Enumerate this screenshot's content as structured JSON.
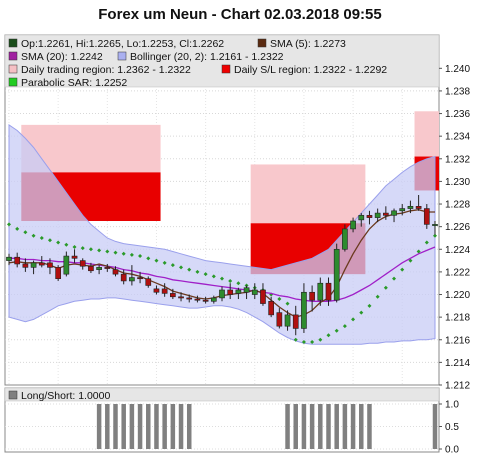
{
  "chart_data": {
    "type": "candlestick",
    "title": "Forex um Neun - Chart 02.03.2018 09:55",
    "price_axis": {
      "ylim": [
        1.212,
        1.241
      ],
      "ticks": [
        "1.240",
        "1.238",
        "1.236",
        "1.234",
        "1.232",
        "1.230",
        "1.228",
        "1.226",
        "1.224",
        "1.222",
        "1.220",
        "1.218",
        "1.216",
        "1.214",
        "1.212"
      ],
      "position": "right",
      "grid": true
    },
    "legend": {
      "placement": "top",
      "entries": [
        {
          "label": "Op:1.2261, Hi:1.2265, Lo:1.2253, Cl:1.2262",
          "color": "#1a4d1a"
        },
        {
          "label": "SMA (5): 1.2273",
          "color": "#5a2a10"
        },
        {
          "label": "SMA (20): 1.2242",
          "color": "#a020a0"
        },
        {
          "label": "Bollinger (20, 2): 1.2161 - 1.2322",
          "color": "#aab0f0"
        },
        {
          "label": "Daily trading region: 1.2362 - 1.2322",
          "color": "#f5c0c4"
        },
        {
          "label": "Daily S/L region: 1.2322 - 1.2292",
          "color": "#ee0000"
        },
        {
          "label": "Parabolic SAR: 1.2252",
          "color": "#22cc22"
        }
      ]
    },
    "candles": [
      {
        "o": 1.223,
        "h": 1.2236,
        "l": 1.2226,
        "c": 1.2233
      },
      {
        "o": 1.2233,
        "h": 1.2237,
        "l": 1.2224,
        "c": 1.2227
      },
      {
        "o": 1.2227,
        "h": 1.2232,
        "l": 1.222,
        "c": 1.2224
      },
      {
        "o": 1.2224,
        "h": 1.223,
        "l": 1.2218,
        "c": 1.2228
      },
      {
        "o": 1.2228,
        "h": 1.2234,
        "l": 1.2224,
        "c": 1.2226
      },
      {
        "o": 1.2228,
        "h": 1.2232,
        "l": 1.2218,
        "c": 1.2224
      },
      {
        "o": 1.2224,
        "h": 1.2226,
        "l": 1.2212,
        "c": 1.2214
      },
      {
        "o": 1.2218,
        "h": 1.2238,
        "l": 1.2216,
        "c": 1.2234
      },
      {
        "o": 1.2234,
        "h": 1.224,
        "l": 1.2228,
        "c": 1.2232
      },
      {
        "o": 1.223,
        "h": 1.2232,
        "l": 1.2222,
        "c": 1.2225
      },
      {
        "o": 1.2225,
        "h": 1.2228,
        "l": 1.2219,
        "c": 1.2221
      },
      {
        "o": 1.2222,
        "h": 1.2226,
        "l": 1.2218,
        "c": 1.2224
      },
      {
        "o": 1.2224,
        "h": 1.2227,
        "l": 1.222,
        "c": 1.2223
      },
      {
        "o": 1.2222,
        "h": 1.2225,
        "l": 1.2216,
        "c": 1.2218
      },
      {
        "o": 1.2218,
        "h": 1.2222,
        "l": 1.2209,
        "c": 1.2212
      },
      {
        "o": 1.2212,
        "h": 1.2226,
        "l": 1.2208,
        "c": 1.2215
      },
      {
        "o": 1.2215,
        "h": 1.222,
        "l": 1.221,
        "c": 1.2214
      },
      {
        "o": 1.2214,
        "h": 1.2216,
        "l": 1.2206,
        "c": 1.2208
      },
      {
        "o": 1.2205,
        "h": 1.2208,
        "l": 1.22,
        "c": 1.2202
      },
      {
        "o": 1.2205,
        "h": 1.221,
        "l": 1.2198,
        "c": 1.2201
      },
      {
        "o": 1.2201,
        "h": 1.2205,
        "l": 1.2196,
        "c": 1.2198
      },
      {
        "o": 1.2198,
        "h": 1.2202,
        "l": 1.2194,
        "c": 1.2197
      },
      {
        "o": 1.2197,
        "h": 1.22,
        "l": 1.2193,
        "c": 1.2196
      },
      {
        "o": 1.2196,
        "h": 1.2199,
        "l": 1.2193,
        "c": 1.2195
      },
      {
        "o": 1.2195,
        "h": 1.2198,
        "l": 1.2192,
        "c": 1.2194
      },
      {
        "o": 1.2194,
        "h": 1.2199,
        "l": 1.2192,
        "c": 1.2197
      },
      {
        "o": 1.2197,
        "h": 1.2207,
        "l": 1.2194,
        "c": 1.2204
      },
      {
        "o": 1.2204,
        "h": 1.221,
        "l": 1.2196,
        "c": 1.22
      },
      {
        "o": 1.2201,
        "h": 1.2206,
        "l": 1.2196,
        "c": 1.2204
      },
      {
        "o": 1.2202,
        "h": 1.2208,
        "l": 1.2196,
        "c": 1.2206
      },
      {
        "o": 1.22,
        "h": 1.221,
        "l": 1.2196,
        "c": 1.2204
      },
      {
        "o": 1.2204,
        "h": 1.221,
        "l": 1.219,
        "c": 1.2192
      },
      {
        "o": 1.2194,
        "h": 1.2198,
        "l": 1.218,
        "c": 1.2182
      },
      {
        "o": 1.2184,
        "h": 1.2188,
        "l": 1.217,
        "c": 1.2172
      },
      {
        "o": 1.2172,
        "h": 1.2186,
        "l": 1.2168,
        "c": 1.2182
      },
      {
        "o": 1.2182,
        "h": 1.219,
        "l": 1.2164,
        "c": 1.217
      },
      {
        "o": 1.217,
        "h": 1.221,
        "l": 1.2166,
        "c": 1.2202
      },
      {
        "o": 1.2202,
        "h": 1.2208,
        "l": 1.2185,
        "c": 1.2195
      },
      {
        "o": 1.2195,
        "h": 1.2215,
        "l": 1.219,
        "c": 1.221
      },
      {
        "o": 1.221,
        "h": 1.2215,
        "l": 1.219,
        "c": 1.2195
      },
      {
        "o": 1.2195,
        "h": 1.2245,
        "l": 1.2193,
        "c": 1.224
      },
      {
        "o": 1.224,
        "h": 1.2262,
        "l": 1.2238,
        "c": 1.2258
      },
      {
        "o": 1.2258,
        "h": 1.2268,
        "l": 1.2255,
        "c": 1.2265
      },
      {
        "o": 1.2266,
        "h": 1.2272,
        "l": 1.226,
        "c": 1.227
      },
      {
        "o": 1.227,
        "h": 1.2274,
        "l": 1.2262,
        "c": 1.2268
      },
      {
        "o": 1.2268,
        "h": 1.2276,
        "l": 1.2264,
        "c": 1.2272
      },
      {
        "o": 1.2272,
        "h": 1.2278,
        "l": 1.2266,
        "c": 1.227
      },
      {
        "o": 1.227,
        "h": 1.2276,
        "l": 1.2264,
        "c": 1.2274
      },
      {
        "o": 1.2274,
        "h": 1.228,
        "l": 1.227,
        "c": 1.2276
      },
      {
        "o": 1.2276,
        "h": 1.2283,
        "l": 1.2272,
        "c": 1.2278
      },
      {
        "o": 1.2278,
        "h": 1.2288,
        "l": 1.2274,
        "c": 1.2276
      },
      {
        "o": 1.2276,
        "h": 1.228,
        "l": 1.2258,
        "c": 1.2262
      },
      {
        "o": 1.2261,
        "h": 1.2265,
        "l": 1.2253,
        "c": 1.2262
      }
    ],
    "sma5": [
      1.2228,
      1.2229,
      1.2228,
      1.2228,
      1.2228,
      1.2226,
      1.2223,
      1.2226,
      1.2227,
      1.2226,
      1.2225,
      1.2227,
      1.2225,
      1.2222,
      1.2219,
      1.2218,
      1.2216,
      1.2213,
      1.221,
      1.2207,
      1.2203,
      1.2201,
      1.2199,
      1.2197,
      1.2196,
      1.2197,
      1.2199,
      1.22,
      1.2201,
      1.2202,
      1.2204,
      1.2201,
      1.2195,
      1.2189,
      1.2184,
      1.218,
      1.2182,
      1.2186,
      1.2193,
      1.2197,
      1.2207,
      1.2222,
      1.2236,
      1.2248,
      1.2258,
      1.2265,
      1.2269,
      1.2271,
      1.2272,
      1.2274,
      1.2275,
      1.2273,
      1.2273
    ],
    "sma20": [
      1.2232,
      1.2232,
      1.2231,
      1.2231,
      1.223,
      1.223,
      1.2229,
      1.2229,
      1.2228,
      1.2228,
      1.2227,
      1.2226,
      1.2225,
      1.2224,
      1.2222,
      1.2221,
      1.2219,
      1.2218,
      1.2216,
      1.2215,
      1.2213,
      1.2212,
      1.2211,
      1.221,
      1.2209,
      1.2208,
      1.2207,
      1.2206,
      1.2205,
      1.2204,
      1.2203,
      1.2202,
      1.2201,
      1.2199,
      1.2198,
      1.2196,
      1.2195,
      1.2194,
      1.2194,
      1.2194,
      1.2195,
      1.2197,
      1.22,
      1.2204,
      1.2208,
      1.2213,
      1.2218,
      1.2223,
      1.2228,
      1.2232,
      1.2236,
      1.2239,
      1.2242
    ],
    "boll_upper": [
      1.235,
      1.2345,
      1.2338,
      1.233,
      1.232,
      1.231,
      1.23,
      1.229,
      1.228,
      1.227,
      1.2262,
      1.2256,
      1.225,
      1.2247,
      1.2245,
      1.2244,
      1.2243,
      1.2242,
      1.2241,
      1.224,
      1.2238,
      1.2236,
      1.2234,
      1.2232,
      1.223,
      1.2229,
      1.2228,
      1.2227,
      1.2226,
      1.2225,
      1.2224,
      1.2223,
      1.2222,
      1.2224,
      1.2226,
      1.2228,
      1.223,
      1.2232,
      1.2236,
      1.224,
      1.2248,
      1.2256,
      1.2264,
      1.2272,
      1.228,
      1.2288,
      1.2296,
      1.2302,
      1.2308,
      1.2313,
      1.2317,
      1.232,
      1.2322
    ],
    "boll_lower": [
      1.218,
      1.2178,
      1.2176,
      1.2178,
      1.2182,
      1.2186,
      1.219,
      1.2192,
      1.2194,
      1.2195,
      1.2196,
      1.2196,
      1.2197,
      1.2197,
      1.2196,
      1.2195,
      1.2194,
      1.2193,
      1.2192,
      1.2191,
      1.219,
      1.2189,
      1.2188,
      1.2188,
      1.2189,
      1.219,
      1.219,
      1.2189,
      1.2187,
      1.2184,
      1.218,
      1.2176,
      1.2171,
      1.2166,
      1.2162,
      1.2159,
      1.2157,
      1.2156,
      1.2156,
      1.2156,
      1.2156,
      1.2156,
      1.2156,
      1.2156,
      1.2157,
      1.2157,
      1.2158,
      1.2158,
      1.2159,
      1.2159,
      1.216,
      1.216,
      1.2161
    ],
    "sar": [
      1.2262,
      1.2258,
      1.2255,
      1.2252,
      1.225,
      1.2248,
      1.2246,
      1.2244,
      1.2242,
      1.2241,
      1.224,
      1.2239,
      1.2238,
      1.2237,
      1.2236,
      1.2235,
      1.2234,
      1.2232,
      1.223,
      1.2228,
      1.2226,
      1.2224,
      1.2222,
      1.222,
      1.2218,
      1.2216,
      1.2214,
      1.2212,
      1.221,
      1.2208,
      1.2206,
      1.2204,
      1.22,
      1.2196,
      1.2192,
      1.216,
      1.2158,
      1.2158,
      1.216,
      1.2164,
      1.2168,
      1.2172,
      1.2178,
      1.2184,
      1.219,
      1.2198,
      1.2206,
      1.2214,
      1.2222,
      1.223,
      1.2238,
      1.2246,
      1.2252
    ],
    "regions": [
      {
        "day": "2018-02-28",
        "from_candle": 2,
        "to_candle": 18,
        "trading_region": [
          1.2308,
          1.235
        ],
        "sl_region": [
          1.2265,
          1.2308
        ]
      },
      {
        "day": "2018-03-01",
        "from_candle": 30,
        "to_candle": 43,
        "trading_region": [
          1.2263,
          1.2315
        ],
        "sl_region": [
          1.2218,
          1.2263
        ]
      },
      {
        "day": "2018-03-02",
        "from_candle": 50,
        "to_candle": 53,
        "trading_region": [
          1.2322,
          1.2362
        ],
        "sl_region": [
          1.2292,
          1.2322
        ]
      }
    ],
    "long_short": {
      "legend": "Long/Short: 1.0000",
      "ylim": [
        0.0,
        1.0
      ],
      "ticks": [
        "1.0",
        "0.5",
        "0.0"
      ],
      "values": [
        0,
        0,
        0,
        0,
        0,
        0,
        0,
        0,
        0,
        0,
        0,
        1,
        1,
        1,
        1,
        1,
        1,
        1,
        1,
        1,
        1,
        1,
        1,
        0,
        0,
        0,
        0,
        0,
        0,
        0,
        0,
        0,
        0,
        0,
        1,
        1,
        1,
        1,
        1,
        1,
        1,
        1,
        1,
        1,
        1,
        0,
        0,
        0,
        0,
        0,
        0,
        0,
        1
      ]
    },
    "colors": {
      "bull": "#2e8b2e",
      "bear": "#b01010",
      "sma5": "#6b3a1e",
      "sma20": "#a020c8",
      "boll_fill": "#c8ccf6",
      "boll_line": "#9aa0ec",
      "trading_region": "#f8c8cc",
      "sl_region": "#e80000",
      "sar": "#2a9a2a",
      "volume_bar": "#808080"
    }
  }
}
